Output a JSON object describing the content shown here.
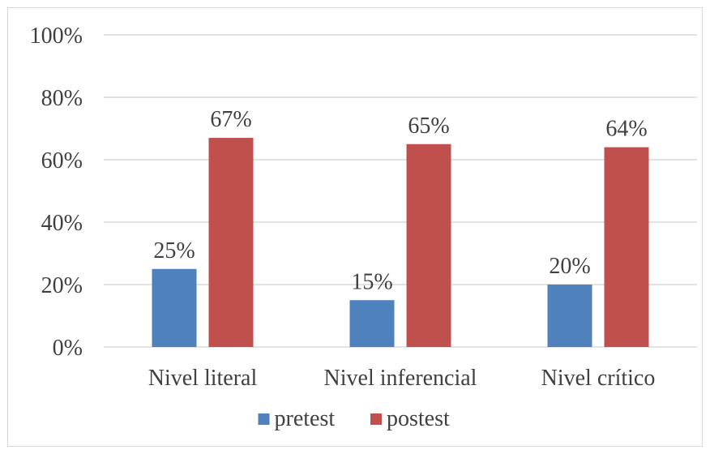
{
  "chart_data": {
    "type": "bar",
    "categories": [
      "Nivel literal",
      "Nivel inferencial",
      "Nivel crítico"
    ],
    "series": [
      {
        "name": "pretest",
        "values": [
          25,
          15,
          20
        ],
        "labels": [
          "25%",
          "15%",
          "20%"
        ],
        "color": "#4f81bd"
      },
      {
        "name": "postest",
        "values": [
          67,
          65,
          64
        ],
        "labels": [
          "67%",
          "65%",
          "64%"
        ],
        "color": "#c0504d"
      }
    ],
    "ylim": [
      0,
      100
    ],
    "yticks": [
      0,
      20,
      40,
      60,
      80,
      100
    ],
    "ytick_labels": [
      "0%",
      "20%",
      "40%",
      "60%",
      "80%",
      "100%"
    ],
    "grid": true,
    "gridline_color": "#d9d9d9",
    "legend_position": "bottom"
  }
}
